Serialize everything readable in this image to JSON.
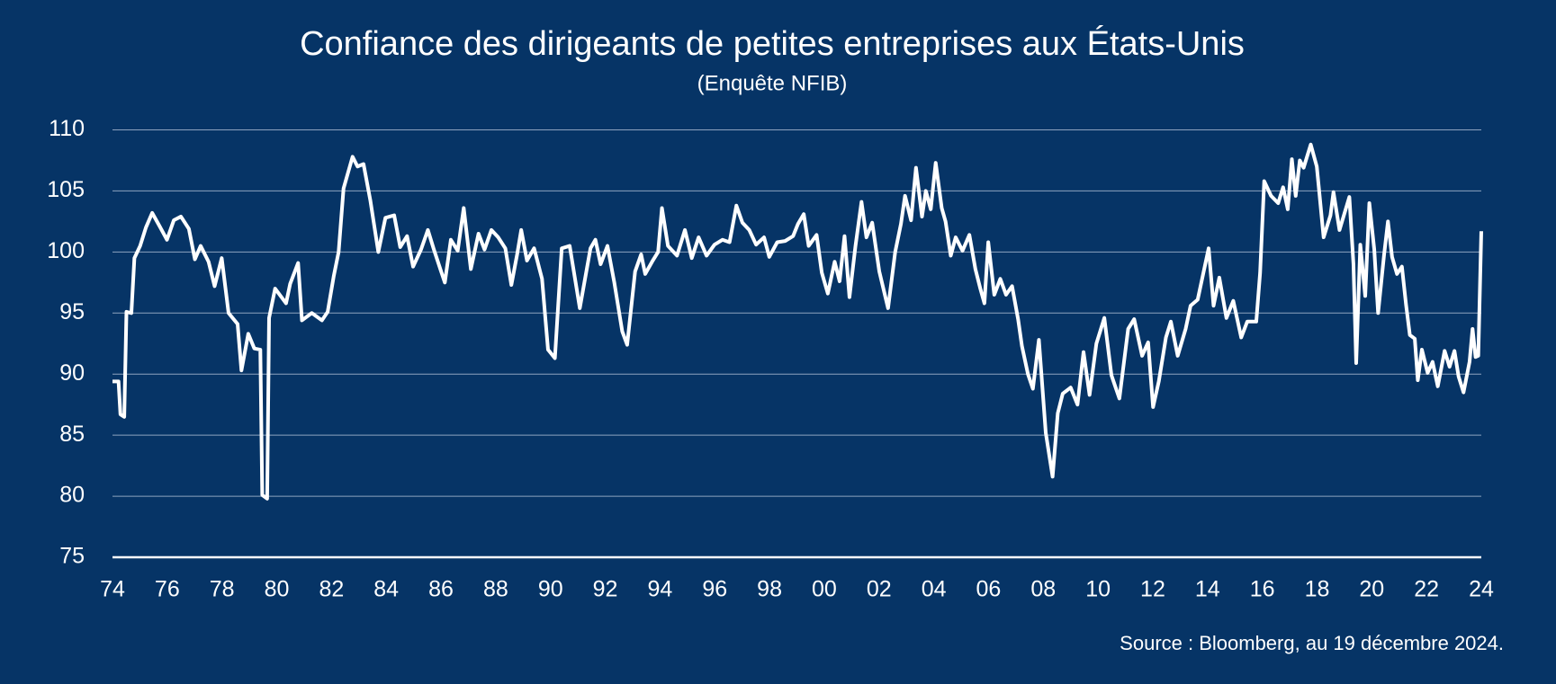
{
  "chart_data": {
    "type": "line",
    "title": "Confiance des dirigeants de petites entreprises aux États-Unis",
    "subtitle": "(Enquête NFIB)",
    "source": "Source : Bloomberg, au 19 décembre 2024.",
    "xlim": [
      1974,
      2024
    ],
    "ylim": [
      75,
      110
    ],
    "yticks": [
      75,
      80,
      85,
      90,
      95,
      100,
      105,
      110
    ],
    "xticks": [
      {
        "value": 1974,
        "label": "74"
      },
      {
        "value": 1976,
        "label": "76"
      },
      {
        "value": 1978,
        "label": "78"
      },
      {
        "value": 1980,
        "label": "80"
      },
      {
        "value": 1982,
        "label": "82"
      },
      {
        "value": 1984,
        "label": "84"
      },
      {
        "value": 1986,
        "label": "86"
      },
      {
        "value": 1988,
        "label": "88"
      },
      {
        "value": 1990,
        "label": "90"
      },
      {
        "value": 1992,
        "label": "92"
      },
      {
        "value": 1994,
        "label": "94"
      },
      {
        "value": 1996,
        "label": "96"
      },
      {
        "value": 1998,
        "label": "98"
      },
      {
        "value": 2000,
        "label": "00"
      },
      {
        "value": 2002,
        "label": "02"
      },
      {
        "value": 2004,
        "label": "04"
      },
      {
        "value": 2006,
        "label": "06"
      },
      {
        "value": 2008,
        "label": "08"
      },
      {
        "value": 2010,
        "label": "10"
      },
      {
        "value": 2012,
        "label": "12"
      },
      {
        "value": 2014,
        "label": "14"
      },
      {
        "value": 2016,
        "label": "16"
      },
      {
        "value": 2018,
        "label": "18"
      },
      {
        "value": 2020,
        "label": "20"
      },
      {
        "value": 2022,
        "label": "22"
      },
      {
        "value": 2024,
        "label": "24"
      }
    ],
    "grid": true,
    "x": [
      1974.0,
      1974.22,
      1974.29,
      1974.43,
      1974.51,
      1974.69,
      1974.8,
      1975.01,
      1975.22,
      1975.45,
      1975.7,
      1975.99,
      1976.24,
      1976.5,
      1976.79,
      1977.01,
      1977.22,
      1977.51,
      1977.73,
      1977.99,
      1978.24,
      1978.57,
      1978.71,
      1978.96,
      1979.18,
      1979.4,
      1979.47,
      1979.65,
      1979.72,
      1979.94,
      1980.34,
      1980.49,
      1980.78,
      1980.92,
      1981.28,
      1981.65,
      1981.86,
      1982.08,
      1982.26,
      1982.44,
      1982.77,
      1982.95,
      1983.17,
      1983.42,
      1983.71,
      1983.97,
      1984.29,
      1984.51,
      1984.76,
      1984.98,
      1985.27,
      1985.52,
      1985.74,
      1985.99,
      1986.14,
      1986.36,
      1986.61,
      1986.83,
      1987.09,
      1987.37,
      1987.59,
      1987.84,
      1988.09,
      1988.35,
      1988.57,
      1988.78,
      1988.93,
      1989.14,
      1989.4,
      1989.69,
      1989.91,
      1990.16,
      1990.41,
      1990.7,
      1991.07,
      1991.46,
      1991.64,
      1991.83,
      1992.08,
      1992.33,
      1992.62,
      1992.8,
      1993.09,
      1993.31,
      1993.46,
      1993.71,
      1993.93,
      1994.07,
      1994.29,
      1994.62,
      1994.91,
      1995.16,
      1995.41,
      1995.7,
      1995.99,
      1996.28,
      1996.54,
      1996.79,
      1997.01,
      1997.26,
      1997.51,
      1997.8,
      1997.99,
      1998.28,
      1998.57,
      1998.86,
      1999.04,
      1999.25,
      1999.43,
      1999.72,
      1999.91,
      2000.13,
      2000.38,
      2000.56,
      2000.74,
      2000.92,
      2001.14,
      2001.36,
      2001.54,
      2001.75,
      2002.01,
      2002.33,
      2002.59,
      2002.8,
      2002.95,
      2003.17,
      2003.35,
      2003.57,
      2003.71,
      2003.89,
      2004.07,
      2004.29,
      2004.43,
      2004.62,
      2004.8,
      2005.05,
      2005.3,
      2005.52,
      2005.7,
      2005.85,
      2005.99,
      2006.21,
      2006.43,
      2006.64,
      2006.86,
      2007.08,
      2007.22,
      2007.44,
      2007.62,
      2007.84,
      2008.09,
      2008.34,
      2008.53,
      2008.71,
      2009.0,
      2009.25,
      2009.47,
      2009.69,
      2009.94,
      2010.23,
      2010.49,
      2010.78,
      2011.1,
      2011.32,
      2011.61,
      2011.83,
      2012.01,
      2012.22,
      2012.48,
      2012.66,
      2012.91,
      2013.2,
      2013.38,
      2013.64,
      2014.04,
      2014.22,
      2014.43,
      2014.69,
      2014.94,
      2015.23,
      2015.45,
      2015.78,
      2015.92,
      2016.07,
      2016.32,
      2016.58,
      2016.76,
      2016.93,
      2017.08,
      2017.22,
      2017.37,
      2017.51,
      2017.77,
      2017.99,
      2018.09,
      2018.24,
      2018.49,
      2018.6,
      2018.82,
      2019.18,
      2019.33,
      2019.43,
      2019.58,
      2019.76,
      2019.91,
      2020.09,
      2020.23,
      2020.45,
      2020.59,
      2020.74,
      2020.92,
      2021.1,
      2021.25,
      2021.39,
      2021.57,
      2021.68,
      2021.83,
      2022.04,
      2022.22,
      2022.41,
      2022.66,
      2022.84,
      2023.02,
      2023.17,
      2023.35,
      2023.57,
      2023.68,
      2023.79,
      2023.89,
      2024.0
    ],
    "series": [
      {
        "name": "NFIB",
        "color": "#ffffff",
        "values": [
          89.4,
          89.4,
          86.7,
          86.5,
          95.1,
          95.0,
          99.5,
          100.5,
          102.0,
          103.2,
          102.2,
          101.0,
          102.6,
          102.9,
          101.9,
          99.4,
          100.5,
          99.2,
          97.2,
          99.5,
          95.0,
          94.1,
          90.3,
          93.3,
          92.1,
          92.0,
          80.1,
          79.8,
          94.6,
          97.0,
          95.8,
          97.4,
          99.1,
          94.4,
          95.0,
          94.4,
          95.1,
          98.0,
          100.0,
          105.2,
          107.8,
          107.0,
          107.2,
          104.2,
          100.0,
          102.8,
          103.0,
          100.4,
          101.3,
          98.8,
          100.2,
          101.8,
          100.2,
          98.5,
          97.5,
          101.0,
          100.1,
          103.6,
          98.6,
          101.5,
          100.2,
          101.8,
          101.2,
          100.3,
          97.3,
          99.8,
          101.8,
          99.3,
          100.3,
          97.8,
          92.0,
          91.3,
          100.3,
          100.5,
          95.4,
          100.3,
          101.0,
          99.0,
          100.5,
          97.5,
          93.5,
          92.4,
          98.4,
          99.8,
          98.2,
          99.2,
          100.0,
          103.6,
          100.5,
          99.7,
          101.8,
          99.5,
          101.2,
          99.7,
          100.6,
          101.0,
          100.8,
          103.8,
          102.4,
          101.8,
          100.6,
          101.2,
          99.6,
          100.8,
          100.9,
          101.3,
          102.3,
          103.1,
          100.5,
          101.4,
          98.3,
          96.6,
          99.2,
          97.6,
          101.3,
          96.3,
          100.5,
          104.1,
          101.2,
          102.4,
          98.4,
          95.4,
          100.0,
          102.3,
          104.6,
          102.6,
          106.9,
          102.9,
          105.0,
          103.5,
          107.3,
          103.6,
          102.5,
          99.7,
          101.2,
          100.1,
          101.4,
          98.6,
          97.0,
          95.8,
          100.8,
          96.5,
          97.8,
          96.5,
          97.2,
          94.5,
          92.3,
          90.0,
          88.8,
          92.8,
          85.2,
          81.6,
          86.8,
          88.4,
          88.9,
          87.5,
          91.8,
          88.3,
          92.5,
          94.6,
          89.9,
          88.0,
          93.7,
          94.5,
          91.5,
          92.6,
          87.3,
          89.4,
          93.0,
          94.3,
          91.5,
          93.7,
          95.6,
          96.1,
          100.3,
          95.6,
          97.9,
          94.6,
          96.0,
          93.0,
          94.3,
          94.3,
          98.3,
          105.8,
          104.6,
          104.0,
          105.3,
          103.5,
          107.6,
          104.6,
          107.5,
          106.9,
          108.8,
          107.0,
          104.7,
          101.2,
          103.0,
          104.9,
          101.8,
          104.5,
          99.0,
          90.9,
          100.6,
          96.4,
          104.0,
          100.2,
          95.0,
          99.8,
          102.5,
          99.6,
          98.2,
          98.8,
          95.7,
          93.2,
          92.9,
          89.5,
          92.0,
          90.1,
          91.0,
          89.0,
          91.9,
          90.6,
          91.9,
          89.8,
          88.5,
          91.0,
          93.7,
          91.4,
          91.5,
          101.7
        ]
      }
    ]
  }
}
